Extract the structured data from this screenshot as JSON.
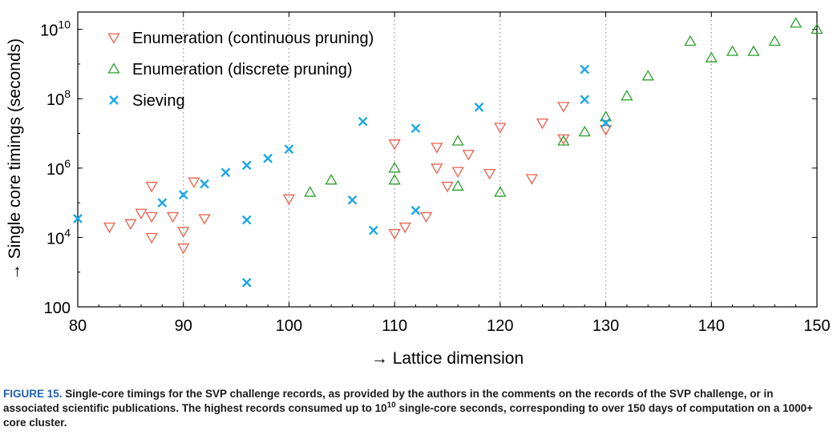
{
  "chart_data": {
    "type": "scatter",
    "xlabel": "→ Lattice dimension",
    "ylabel": "→ Single core timings (seconds)",
    "xlim": [
      80,
      150
    ],
    "ylim": [
      100,
      31622776601
    ],
    "yscale": "log",
    "grid": "dotted vertical lines at x ticks",
    "legend_position": "top-left",
    "x_ticks": [
      80,
      90,
      100,
      110,
      120,
      130,
      140,
      150
    ],
    "y_ticks": [
      {
        "value": 100,
        "base": "100",
        "exp": ""
      },
      {
        "value": 10000,
        "base": "10",
        "exp": "4"
      },
      {
        "value": 1000000,
        "base": "10",
        "exp": "6"
      },
      {
        "value": 100000000,
        "base": "10",
        "exp": "8"
      },
      {
        "value": 10000000000,
        "base": "10",
        "exp": "10"
      }
    ],
    "series": [
      {
        "name": "Enumeration (continuous pruning)",
        "marker": "triangle-down",
        "color": "#e8604c",
        "points": [
          [
            83,
            20000
          ],
          [
            85,
            25000
          ],
          [
            86,
            50000
          ],
          [
            87,
            40000
          ],
          [
            87,
            300000
          ],
          [
            87,
            10000
          ],
          [
            89,
            40000
          ],
          [
            90,
            15000
          ],
          [
            90,
            5000
          ],
          [
            91,
            400000
          ],
          [
            92,
            35000
          ],
          [
            100,
            130000
          ],
          [
            110,
            5000000
          ],
          [
            110,
            13000
          ],
          [
            111,
            20000
          ],
          [
            113,
            40000
          ],
          [
            114,
            4000000
          ],
          [
            114,
            1000000
          ],
          [
            115,
            300000
          ],
          [
            116,
            800000
          ],
          [
            117,
            2500000
          ],
          [
            119,
            700000
          ],
          [
            120,
            15000000
          ],
          [
            123,
            500000
          ],
          [
            124,
            20000000
          ],
          [
            126,
            60000000
          ],
          [
            126,
            7000000
          ],
          [
            130,
            13000000
          ]
        ]
      },
      {
        "name": "Enumeration (discrete pruning)",
        "marker": "triangle-up",
        "color": "#2ca02c",
        "points": [
          [
            102,
            200000
          ],
          [
            104,
            450000
          ],
          [
            110,
            1000000
          ],
          [
            110,
            450000
          ],
          [
            116,
            6000000
          ],
          [
            116,
            300000
          ],
          [
            120,
            200000
          ],
          [
            126,
            6000000
          ],
          [
            128,
            11000000
          ],
          [
            130,
            30000000
          ],
          [
            132,
            120000000
          ],
          [
            134,
            450000000
          ],
          [
            138,
            4500000000
          ],
          [
            140,
            1500000000
          ],
          [
            142,
            2300000000
          ],
          [
            144,
            2300000000
          ],
          [
            146,
            4500000000
          ],
          [
            148,
            15000000000
          ],
          [
            150,
            10000000000
          ]
        ]
      },
      {
        "name": "Sieving",
        "marker": "x",
        "color": "#1ea7e6",
        "points": [
          [
            80,
            35000
          ],
          [
            88,
            100000
          ],
          [
            90,
            170000
          ],
          [
            92,
            350000
          ],
          [
            94,
            750000
          ],
          [
            96,
            1200000
          ],
          [
            96,
            32000
          ],
          [
            96,
            500
          ],
          [
            98,
            1900000
          ],
          [
            100,
            3500000
          ],
          [
            106,
            120000
          ],
          [
            107,
            22000000
          ],
          [
            108,
            16000
          ],
          [
            112,
            14000000
          ],
          [
            112,
            60000
          ],
          [
            118,
            57000000
          ],
          [
            128,
            700000000
          ],
          [
            128,
            95000000
          ],
          [
            130,
            20000000
          ]
        ]
      }
    ]
  },
  "caption": {
    "label": "FIGURE 15.",
    "text_before": " Single-core timings for the SVP challenge records, as provided by the authors in the comments on the records of the SVP challenge, or in associated scientific publications. The highest records consumed up to 10",
    "sup": "10",
    "text_after": " single-core seconds, corresponding to over 150 days of computation on a 1000+ core cluster."
  }
}
